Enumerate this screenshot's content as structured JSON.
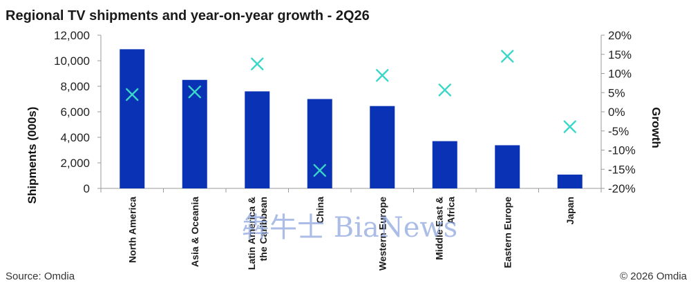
{
  "chart_data": {
    "type": "bar",
    "title": "Regional TV shipments and year-on-year growth - 2Q26",
    "ylabel": "Shipments (000s)",
    "y2label": "Growth",
    "ylim": [
      0,
      12000
    ],
    "y2lim": [
      -20,
      20
    ],
    "yticks": [
      "0",
      "2,000",
      "4,000",
      "6,000",
      "8,000",
      "10,000",
      "12,000"
    ],
    "y2ticks": [
      "-20%",
      "-15%",
      "-10%",
      "-5%",
      "0%",
      "5%",
      "10%",
      "15%",
      "20%"
    ],
    "categories": [
      [
        "North America"
      ],
      [
        "Asia & Oceania"
      ],
      [
        "Latin America &",
        "the Caribbean"
      ],
      [
        "China"
      ],
      [
        "Western Europe"
      ],
      [
        "Middle East &",
        "Africa"
      ],
      [
        "Eastern Europe"
      ],
      [
        "Japan"
      ]
    ],
    "series": [
      {
        "type": "bar",
        "axis": "left",
        "color": "#0a32b4",
        "values": [
          10900,
          8500,
          7600,
          7000,
          6450,
          3700,
          3380,
          1080
        ]
      },
      {
        "type": "scatter",
        "axis": "right",
        "marker": "x",
        "color": "#3ad7c8",
        "values": [
          4.5,
          5.2,
          12.5,
          -15.3,
          9.5,
          5.7,
          14.5,
          -3.9
        ]
      }
    ],
    "grid": false,
    "legend": "none"
  },
  "footer": {
    "source": "Source: Omdia",
    "copyright": "© 2026 Omdia"
  },
  "watermark": {
    "text": "犇牛士 BiaNews"
  }
}
